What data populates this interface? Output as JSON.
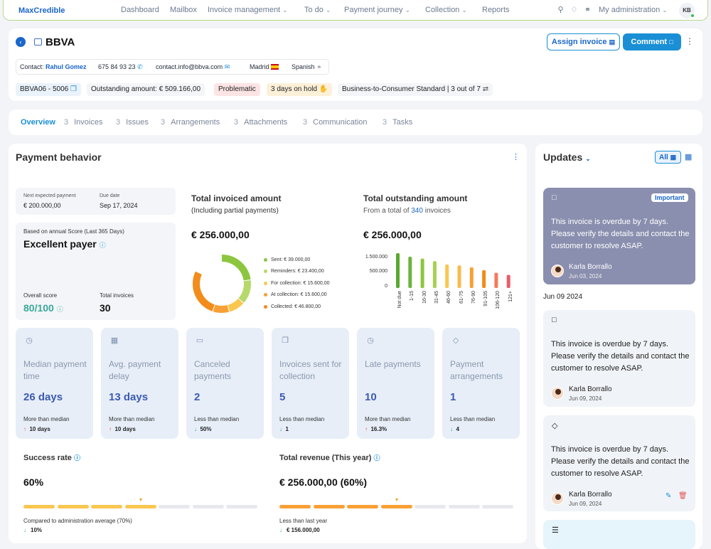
{
  "app": {
    "logo": "MaxCredible"
  },
  "nav": {
    "items": [
      "Dashboard",
      "Mailbox",
      "Invoice management",
      "To do",
      "Payment journey",
      "Collection",
      "Reports"
    ],
    "account": "My administration",
    "initials": "KB"
  },
  "header": {
    "title": "BBVA",
    "assign_label": "Assign invoice",
    "comment_label": "Comment"
  },
  "contact": {
    "label": "Contact:",
    "name": "Rahul Gomez",
    "phone": "675 84 93 23",
    "email": "contact.info@bbva.com",
    "city": "Madrid",
    "language": "Spanish"
  },
  "summary": {
    "id": "BBVA06 - 5006",
    "outstanding": "Outstanding amount: € 509.166,00",
    "status": "Problematic",
    "hold": "3 days on hold",
    "segment": "Business-to-Consumer Standard | 3 out of 7"
  },
  "tabs": [
    {
      "count": "",
      "label": "Overview"
    },
    {
      "count": "3",
      "label": "Invoices"
    },
    {
      "count": "3",
      "label": "Issues"
    },
    {
      "count": "3",
      "label": "Arrangements"
    },
    {
      "count": "3",
      "label": "Attachments"
    },
    {
      "count": "3",
      "label": "Communication"
    },
    {
      "count": "3",
      "label": "Tasks"
    }
  ],
  "behavior": {
    "title": "Payment behavior",
    "next_label": "Next expected payment",
    "next_value": "€ 200.000,00",
    "due_label": "Due date",
    "due_value": "Sep 17, 2024",
    "score_basis": "Based on annual Score (Last 365 Days)",
    "rating": "Excellent payer",
    "overall_label": "Overall score",
    "overall_value": "80/100",
    "total_inv_label": "Total invoices",
    "total_inv_value": "30",
    "invoiced_title": "Total invoiced amount",
    "invoiced_sub": "(Including partial payments)",
    "invoiced_amount": "€ 256.000,00",
    "outstanding_title": "Total outstanding amount",
    "outstanding_sub_pre": "From a total of",
    "outstanding_sub_count": "340",
    "outstanding_sub_post": "invoices",
    "outstanding_amount": "€ 256.000,00"
  },
  "donut_legend": [
    {
      "label": "Sent: € 39.000,00",
      "color": "#8cc63f"
    },
    {
      "label": "Reminders: € 23.400,00",
      "color": "#b6d96a"
    },
    {
      "label": "For collection: € 15.600,00",
      "color": "#f9c74f"
    },
    {
      "label": "At collection: € 15.600,00",
      "color": "#f8a035"
    },
    {
      "label": "Collected: € 46.800,00",
      "color": "#f28c1b"
    }
  ],
  "chart_data": {
    "type": "bar",
    "title": "Total outstanding amount",
    "categories": [
      "Not due",
      "1-15",
      "16-30",
      "31-45",
      "46-60",
      "61-75",
      "76-90",
      "91-105",
      "106-120",
      "121+"
    ],
    "values": [
      1480000,
      1330000,
      1250000,
      1140000,
      1000000,
      960000,
      880000,
      760000,
      650000,
      560000
    ],
    "ylim": [
      0,
      1600000
    ],
    "yticks": [
      "1.500.000",
      "500.000",
      "0"
    ],
    "colors": [
      "#5aa82f",
      "#6db33f",
      "#8cc63f",
      "#a6d051",
      "#f9c74f",
      "#f9b94a",
      "#f7a034",
      "#f28c1b",
      "#f47a5a",
      "#e85d6a"
    ]
  },
  "stats": [
    {
      "label": "Median payment time",
      "value": "26 days",
      "cmp": "More than median",
      "delta": "10 days",
      "dir": "up"
    },
    {
      "label": "Avg. payment delay",
      "value": "13 days",
      "cmp": "More than median",
      "delta": "10 days",
      "dir": "up"
    },
    {
      "label": "Canceled payments",
      "value": "2",
      "cmp": "Less than median",
      "delta": "50%",
      "dir": "down"
    },
    {
      "label": "Invoices sent for collection",
      "value": "5",
      "cmp": "Less than median",
      "delta": "1",
      "dir": "down"
    },
    {
      "label": "Late payments",
      "value": "10",
      "cmp": "More than median",
      "delta": "16.3%",
      "dir": "up"
    },
    {
      "label": "Payment arrangements",
      "value": "1",
      "cmp": "Less than median",
      "delta": "4",
      "dir": "down"
    }
  ],
  "success": {
    "title": "Success rate",
    "value": "60%",
    "cmp": "Compared to administration average (70%)",
    "delta": "10%",
    "progress": 0.6
  },
  "revenue": {
    "title": "Total revenue (This year)",
    "value": "€ 256.000,00 (60%)",
    "cmp": "Less than last year",
    "delta": "€ 156.000,00",
    "progress": 0.6
  },
  "updates": {
    "title": "Updates",
    "filter_all": "All",
    "items": [
      {
        "badge": "Important",
        "message": "This invoice is overdue by 7 days. Please verify the details and contact the customer to resolve ASAP.",
        "author": "Karla Borrallo",
        "date": "Jun 03, 2024"
      },
      {
        "message": "This invoice is overdue by 7 days. Please verify the details and contact the customer to resolve ASAP.",
        "author": "Karla Borrallo",
        "date": "Jun 09, 2024"
      },
      {
        "message": "This invoice is overdue by 7 days. Please verify the details and contact the customer to resolve ASAP.",
        "author": "Karla Borrallo",
        "date": "Jun 09, 2024"
      }
    ],
    "group_date": "Jun 09 2024"
  }
}
